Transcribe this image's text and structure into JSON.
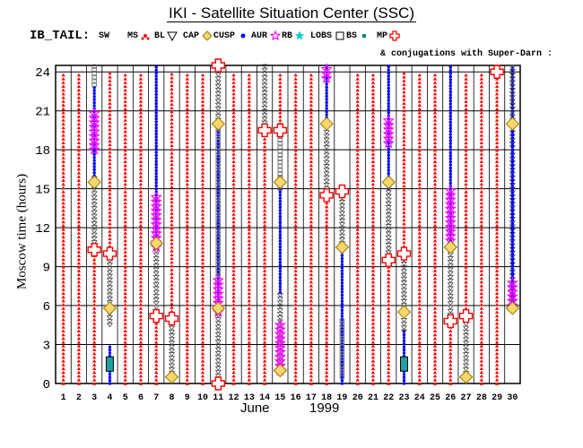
{
  "header": {
    "title": "IKI - Satellite Situation Center (SSC)",
    "section": "IB_TAIL:",
    "conjugations": "& conjugations with Super-Darn :"
  },
  "legend": [
    {
      "label": "SW",
      "color": "#000000",
      "symbol": "none"
    },
    {
      "label": "MS",
      "color": "#ff0000",
      "symbol": "red-dots"
    },
    {
      "label": "BL",
      "color": "#000000",
      "symbol": "down-triangle"
    },
    {
      "label": "CAP",
      "color": "#daa520",
      "symbol": "diamond"
    },
    {
      "label": "CUSP",
      "color": "#0000ff",
      "symbol": "blue-dots"
    },
    {
      "label": "AUR",
      "color": "#ff00ff",
      "symbol": "star"
    },
    {
      "label": "RB",
      "color": "#00cccc",
      "symbol": "cyan-star"
    },
    {
      "label": "LOBS",
      "color": "#000000",
      "symbol": "square"
    },
    {
      "label": "BS",
      "color": "#008080",
      "symbol": "teal-square"
    },
    {
      "label": "MP",
      "color": "#ff0000",
      "symbol": "cross"
    }
  ],
  "chart_data": {
    "type": "timeline",
    "ylabel": "Moscow time (hours)",
    "xlabel_month": "June",
    "xlabel_year": "1999",
    "ylim": [
      0,
      24.5
    ],
    "yticks": [
      0,
      3,
      6,
      9,
      12,
      15,
      18,
      21,
      24
    ],
    "days": [
      1,
      2,
      3,
      4,
      5,
      6,
      7,
      8,
      9,
      10,
      11,
      12,
      13,
      14,
      15,
      16,
      17,
      18,
      19,
      20,
      21,
      22,
      23,
      24,
      25,
      26,
      27,
      28,
      29,
      30
    ],
    "segments": [
      {
        "day": 1,
        "type": "MS",
        "from": 0,
        "to": 24
      },
      {
        "day": 2,
        "type": "MS",
        "from": 0,
        "to": 24
      },
      {
        "day": 3,
        "type": "MS",
        "from": 0,
        "to": 10
      },
      {
        "day": 3,
        "type": "BL",
        "from": 10,
        "to": 16
      },
      {
        "day": 3,
        "type": "CUSP",
        "from": 16,
        "to": 23
      },
      {
        "day": 3,
        "type": "LOBS",
        "from": 23,
        "to": 24.5
      },
      {
        "day": 4,
        "type": "MS",
        "from": 10,
        "to": 24
      },
      {
        "day": 4,
        "type": "BL",
        "from": 4.5,
        "to": 10
      },
      {
        "day": 4,
        "type": "CUSP",
        "from": 0,
        "to": 3
      },
      {
        "day": 5,
        "type": "MS",
        "from": 0,
        "to": 24
      },
      {
        "day": 6,
        "type": "MS",
        "from": 0,
        "to": 24
      },
      {
        "day": 7,
        "type": "MS",
        "from": 0,
        "to": 5
      },
      {
        "day": 7,
        "type": "BL",
        "from": 5,
        "to": 11
      },
      {
        "day": 7,
        "type": "CUSP",
        "from": 11,
        "to": 24.5
      },
      {
        "day": 8,
        "type": "BL",
        "from": 0.5,
        "to": 5
      },
      {
        "day": 8,
        "type": "MS",
        "from": 5,
        "to": 24
      },
      {
        "day": 9,
        "type": "MS",
        "from": 0,
        "to": 24
      },
      {
        "day": 10,
        "type": "MS",
        "from": 0,
        "to": 24
      },
      {
        "day": 11,
        "type": "BL",
        "from": 0,
        "to": 6
      },
      {
        "day": 11,
        "type": "CUSP",
        "from": 6,
        "to": 20
      },
      {
        "day": 11,
        "type": "LOBS",
        "from": 8,
        "to": 20
      },
      {
        "day": 11,
        "type": "BL",
        "from": 20,
        "to": 24.5
      },
      {
        "day": 12,
        "type": "MS",
        "from": 0,
        "to": 24
      },
      {
        "day": 13,
        "type": "MS",
        "from": 0,
        "to": 24
      },
      {
        "day": 14,
        "type": "MS",
        "from": 0,
        "to": 19.5
      },
      {
        "day": 14,
        "type": "BL",
        "from": 19.5,
        "to": 24.5
      },
      {
        "day": 15,
        "type": "BL",
        "from": 1,
        "to": 7
      },
      {
        "day": 15,
        "type": "CUSP",
        "from": 7,
        "to": 15
      },
      {
        "day": 15,
        "type": "LOBS",
        "from": 15,
        "to": 20
      },
      {
        "day": 15,
        "type": "MS",
        "from": 20,
        "to": 24
      },
      {
        "day": 16,
        "type": "MS",
        "from": 0,
        "to": 24
      },
      {
        "day": 17,
        "type": "MS",
        "from": 0,
        "to": 24
      },
      {
        "day": 18,
        "type": "MS",
        "from": 0,
        "to": 15
      },
      {
        "day": 18,
        "type": "BL",
        "from": 15,
        "to": 20
      },
      {
        "day": 18,
        "type": "CUSP",
        "from": 20,
        "to": 24.5
      },
      {
        "day": 19,
        "type": "BL",
        "from": 10.5,
        "to": 15
      },
      {
        "day": 19,
        "type": "CUSP",
        "from": 0,
        "to": 10.5
      },
      {
        "day": 19,
        "type": "LOBS",
        "from": 0.5,
        "to": 5
      },
      {
        "day": 20,
        "type": "MS",
        "from": 0,
        "to": 24
      },
      {
        "day": 21,
        "type": "MS",
        "from": 0,
        "to": 24
      },
      {
        "day": 22,
        "type": "MS",
        "from": 0,
        "to": 9.5
      },
      {
        "day": 22,
        "type": "BL",
        "from": 9.5,
        "to": 15
      },
      {
        "day": 22,
        "type": "CUSP",
        "from": 15,
        "to": 24.5
      },
      {
        "day": 23,
        "type": "CUSP",
        "from": 0,
        "to": 4
      },
      {
        "day": 23,
        "type": "BL",
        "from": 4,
        "to": 10
      },
      {
        "day": 23,
        "type": "MS",
        "from": 10,
        "to": 24
      },
      {
        "day": 24,
        "type": "MS",
        "from": 0,
        "to": 24
      },
      {
        "day": 25,
        "type": "MS",
        "from": 0,
        "to": 24
      },
      {
        "day": 26,
        "type": "MS",
        "from": 0,
        "to": 5
      },
      {
        "day": 26,
        "type": "BL",
        "from": 5,
        "to": 10.5
      },
      {
        "day": 26,
        "type": "CUSP",
        "from": 10.5,
        "to": 24.5
      },
      {
        "day": 27,
        "type": "BL",
        "from": 0.5,
        "to": 5.5
      },
      {
        "day": 27,
        "type": "MS",
        "from": 5.5,
        "to": 24
      },
      {
        "day": 28,
        "type": "MS",
        "from": 0,
        "to": 24
      },
      {
        "day": 29,
        "type": "MS",
        "from": 0,
        "to": 24
      },
      {
        "day": 30,
        "type": "BL",
        "from": 6,
        "to": 20
      },
      {
        "day": 30,
        "type": "CUSP",
        "from": 6,
        "to": 24.5
      },
      {
        "day": 30,
        "type": "BL",
        "from": 20,
        "to": 24.5
      }
    ],
    "markers": [
      {
        "day": 3,
        "type": "CAP",
        "t": 15.5
      },
      {
        "day": 3,
        "type": "MP",
        "t": 10.3
      },
      {
        "day": 4,
        "type": "MP",
        "t": 10
      },
      {
        "day": 4,
        "type": "CAP",
        "t": 5.8
      },
      {
        "day": 4,
        "type": "AUR",
        "t": 4.5
      },
      {
        "day": 4,
        "type": "BS",
        "t": 1.5
      },
      {
        "day": 7,
        "type": "MP",
        "t": 5.2
      },
      {
        "day": 7,
        "type": "CAP",
        "t": 10.8
      },
      {
        "day": 8,
        "type": "MP",
        "t": 5
      },
      {
        "day": 8,
        "type": "CAP",
        "t": 0.5
      },
      {
        "day": 11,
        "type": "MP",
        "t": 24.5
      },
      {
        "day": 11,
        "type": "MP",
        "t": 0
      },
      {
        "day": 11,
        "type": "CAP",
        "t": 20
      },
      {
        "day": 11,
        "type": "CAP",
        "t": 5.8
      },
      {
        "day": 14,
        "type": "MP",
        "t": 19.5
      },
      {
        "day": 15,
        "type": "MP",
        "t": 19.5
      },
      {
        "day": 15,
        "type": "CAP",
        "t": 15.5
      },
      {
        "day": 15,
        "type": "CAP",
        "t": 1
      },
      {
        "day": 18,
        "type": "MP",
        "t": 14.5
      },
      {
        "day": 18,
        "type": "CAP",
        "t": 20
      },
      {
        "day": 19,
        "type": "MP",
        "t": 14.8
      },
      {
        "day": 19,
        "type": "CAP",
        "t": 10.5
      },
      {
        "day": 22,
        "type": "MP",
        "t": 9.5
      },
      {
        "day": 22,
        "type": "CAP",
        "t": 15.5
      },
      {
        "day": 23,
        "type": "MP",
        "t": 10
      },
      {
        "day": 23,
        "type": "CAP",
        "t": 5.5
      },
      {
        "day": 23,
        "type": "BS",
        "t": 1.5
      },
      {
        "day": 26,
        "type": "MP",
        "t": 4.8
      },
      {
        "day": 26,
        "type": "CAP",
        "t": 10.5
      },
      {
        "day": 27,
        "type": "MP",
        "t": 5.2
      },
      {
        "day": 27,
        "type": "CAP",
        "t": 0.5
      },
      {
        "day": 29,
        "type": "MP",
        "t": 24
      },
      {
        "day": 30,
        "type": "CAP",
        "t": 20
      },
      {
        "day": 30,
        "type": "CAP",
        "t": 5.8
      }
    ],
    "aurora": [
      {
        "day": 3,
        "from": 18,
        "to": 21
      },
      {
        "day": 7,
        "from": 10.5,
        "to": 14.5
      },
      {
        "day": 11,
        "from": 5.5,
        "to": 8
      },
      {
        "day": 15,
        "from": 1,
        "to": 4.5
      },
      {
        "day": 18,
        "from": 23.5,
        "to": 24.5
      },
      {
        "day": 22,
        "from": 18.5,
        "to": 20.5
      },
      {
        "day": 26,
        "from": 11,
        "to": 15
      },
      {
        "day": 30,
        "from": 6,
        "to": 8
      }
    ]
  }
}
